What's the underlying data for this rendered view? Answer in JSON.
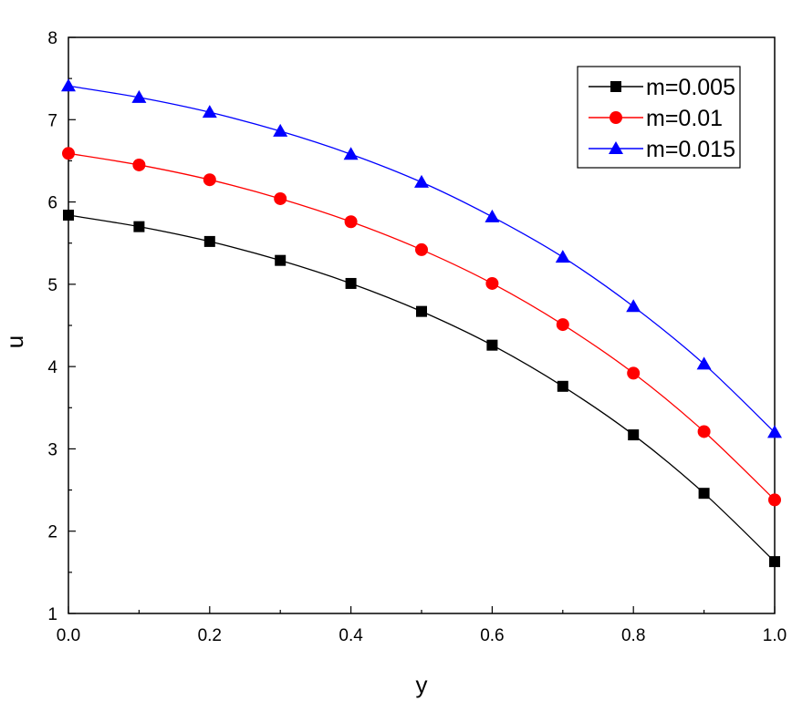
{
  "chart_data": {
    "type": "line",
    "xlabel": "y",
    "ylabel": "u",
    "xlim": [
      0.0,
      1.0
    ],
    "ylim": [
      1,
      8
    ],
    "xticks": [
      "0.0",
      "0.2",
      "0.4",
      "0.6",
      "0.8",
      "1.0"
    ],
    "yticks": [
      "1",
      "2",
      "3",
      "4",
      "5",
      "6",
      "7",
      "8"
    ],
    "grid": false,
    "legend_position": "top-right",
    "x": [
      0.0,
      0.1,
      0.2,
      0.3,
      0.4,
      0.5,
      0.6,
      0.7,
      0.8,
      0.9,
      1.0
    ],
    "series": [
      {
        "name": "m=0.005",
        "marker": "square",
        "color": "#000000",
        "values": [
          5.84,
          5.7,
          5.52,
          5.29,
          5.01,
          4.67,
          4.26,
          3.76,
          3.17,
          2.46,
          1.63
        ]
      },
      {
        "name": "m=0.01",
        "marker": "circle",
        "color": "#ff0000",
        "values": [
          6.59,
          6.45,
          6.27,
          6.04,
          5.76,
          5.42,
          5.01,
          4.51,
          3.92,
          3.21,
          2.38
        ]
      },
      {
        "name": "m=0.015",
        "marker": "triangle",
        "color": "#0000ff",
        "values": [
          7.41,
          7.27,
          7.09,
          6.86,
          6.58,
          6.24,
          5.82,
          5.33,
          4.73,
          4.03,
          3.2
        ]
      }
    ]
  }
}
